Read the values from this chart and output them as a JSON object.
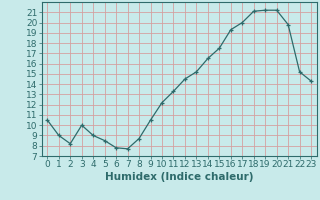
{
  "x": [
    0,
    1,
    2,
    3,
    4,
    5,
    6,
    7,
    8,
    9,
    10,
    11,
    12,
    13,
    14,
    15,
    16,
    17,
    18,
    19,
    20,
    21,
    22,
    23
  ],
  "y": [
    10.5,
    9.0,
    8.2,
    10.0,
    9.0,
    8.5,
    7.8,
    7.7,
    8.7,
    10.5,
    12.2,
    13.3,
    14.5,
    15.2,
    16.5,
    17.5,
    19.3,
    20.0,
    21.1,
    21.2,
    21.2,
    19.8,
    15.2,
    14.3
  ],
  "line_color": "#2e6b6b",
  "marker": "+",
  "bg_color": "#c8eaea",
  "grid_color": "#b0d8d8",
  "xlabel": "Humidex (Indice chaleur)",
  "xlim": [
    -0.5,
    23.5
  ],
  "ylim": [
    7,
    22
  ],
  "yticks": [
    7,
    8,
    9,
    10,
    11,
    12,
    13,
    14,
    15,
    16,
    17,
    18,
    19,
    20,
    21
  ],
  "xticks": [
    0,
    1,
    2,
    3,
    4,
    5,
    6,
    7,
    8,
    9,
    10,
    11,
    12,
    13,
    14,
    15,
    16,
    17,
    18,
    19,
    20,
    21,
    22,
    23
  ],
  "tick_color": "#2e6b6b",
  "axis_color": "#2e6b6b",
  "label_fontsize": 7.5,
  "tick_fontsize": 6.5
}
